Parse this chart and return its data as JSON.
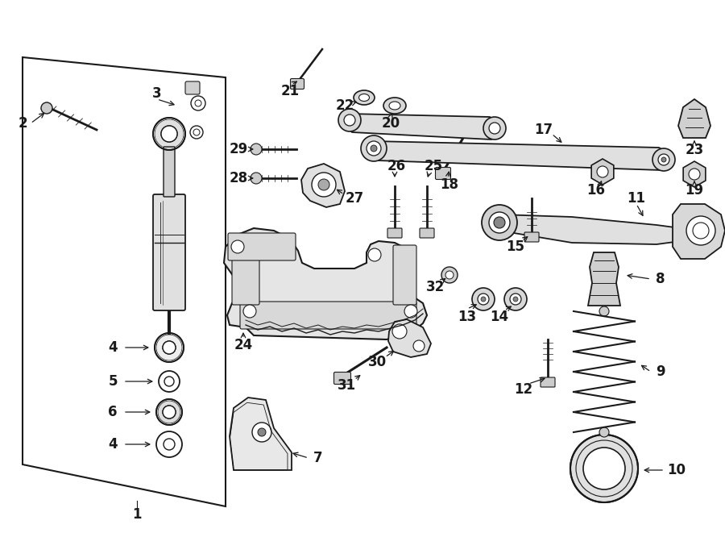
{
  "background_color": "#ffffff",
  "line_color": "#1a1a1a",
  "figsize": [
    9.0,
    6.61
  ],
  "dpi": 100
}
